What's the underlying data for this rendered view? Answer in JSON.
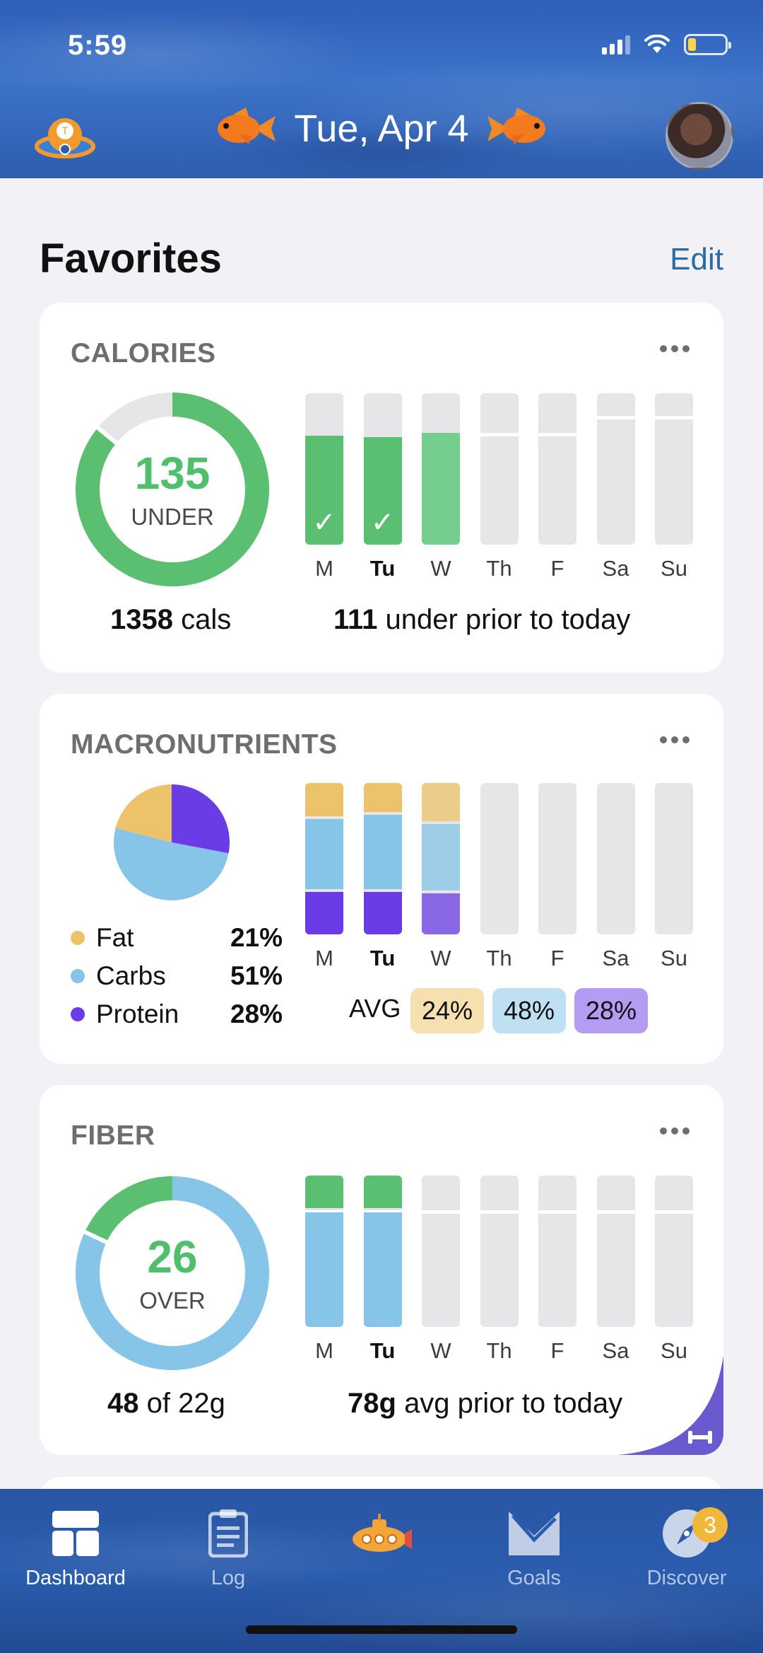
{
  "status_bar": {
    "time": "5:59"
  },
  "header": {
    "date": "Tue, Apr 4"
  },
  "section": {
    "title": "Favorites",
    "edit_label": "Edit"
  },
  "days": [
    "M",
    "Tu",
    "W",
    "Th",
    "F",
    "Sa",
    "Su"
  ],
  "today_index": 1,
  "calories": {
    "title": "CALORIES",
    "ring_value": "135",
    "ring_label": "UNDER",
    "ring_fill_fraction": 0.86,
    "consumed_value": "1358",
    "consumed_unit": "cals",
    "summary_value": "111",
    "summary_text": "under prior to today",
    "daily_fill_fraction": [
      0.72,
      0.71,
      0.74,
      0,
      0,
      0,
      0
    ],
    "daily_checked": [
      true,
      true,
      false,
      false,
      false,
      false,
      false
    ],
    "goal_line_fraction": [
      0.7,
      0.7,
      0.74,
      0.74,
      0.74,
      0.85,
      0.85
    ],
    "colors": {
      "done": "#5bbf72",
      "today_partial": "#74cf8e",
      "empty": "#e6e6e8"
    }
  },
  "macronutrients": {
    "title": "MACRONUTRIENTS",
    "legend": [
      {
        "name": "Fat",
        "percent": "21%",
        "value": 21,
        "color": "#ecc36a"
      },
      {
        "name": "Carbs",
        "percent": "51%",
        "value": 51,
        "color": "#86c4e8"
      },
      {
        "name": "Protein",
        "percent": "28%",
        "value": 28,
        "color": "#6a3ce6"
      }
    ],
    "daily_split_percent": [
      {
        "fat": 24,
        "carbs": 48,
        "protein": 28
      },
      {
        "fat": 21,
        "carbs": 51,
        "protein": 28
      },
      {
        "fat": 27,
        "carbs": 46,
        "protein": 27
      },
      null,
      null,
      null,
      null
    ],
    "avg_label": "AVG",
    "avg": [
      {
        "value": "24%",
        "bg": "#f6e0b0"
      },
      {
        "value": "48%",
        "bg": "#bfe0f3"
      },
      {
        "value": "28%",
        "bg": "#b49cf2"
      }
    ]
  },
  "fiber": {
    "title": "FIBER",
    "ring_value": "26",
    "ring_label": "OVER",
    "ring_over_fraction": 0.18,
    "consumed_value": "48",
    "consumed_text": "of 22g",
    "summary_value": "78g",
    "summary_text": "avg prior to today",
    "daily_over": [
      true,
      true,
      false,
      false,
      false,
      false,
      false
    ],
    "colors": {
      "goal": "#86c4e8",
      "over": "#5bbf72"
    }
  },
  "tabbar": {
    "tabs": [
      {
        "label": "Dashboard",
        "icon": "dashboard-icon",
        "active": true
      },
      {
        "label": "Log",
        "icon": "clipboard-icon",
        "active": false
      },
      {
        "label": "",
        "icon": "submarine-icon",
        "active": false
      },
      {
        "label": "Goals",
        "icon": "goals-icon",
        "active": false
      },
      {
        "label": "Discover",
        "icon": "compass-icon",
        "active": false,
        "badge": "3"
      }
    ]
  }
}
